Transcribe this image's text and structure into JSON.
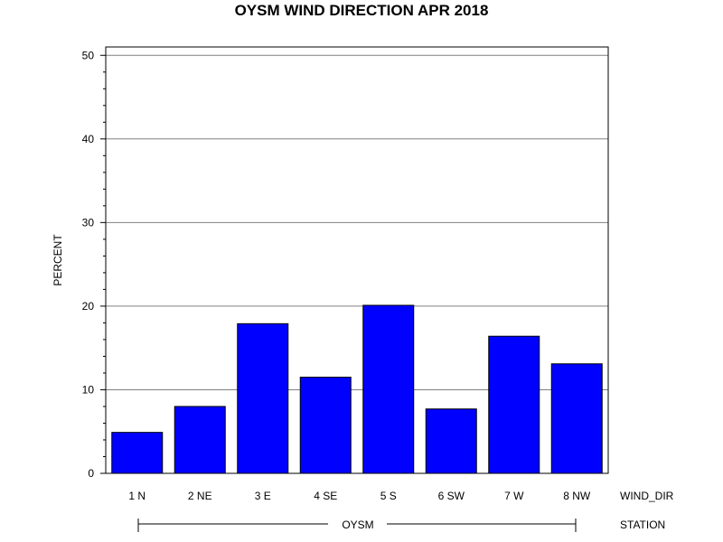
{
  "chart_data": {
    "type": "bar",
    "title": "OYSM WIND DIRECTION APR 2018",
    "ylabel": "PERCENT",
    "xlabel": "WIND_DIR",
    "group_label": "STATION",
    "group_value": "OYSM",
    "categories": [
      "1 N",
      "2 NE",
      "3 E",
      "4 SE",
      "5 S",
      "6 SW",
      "7 W",
      "8 NW"
    ],
    "values": [
      4.9,
      8.0,
      17.9,
      11.5,
      20.1,
      7.7,
      16.4,
      13.1
    ],
    "ylim": [
      0,
      51
    ],
    "yticks": [
      "0",
      "10",
      "20",
      "30",
      "40",
      "50"
    ],
    "grid": true,
    "bar_color": "#0000ff",
    "legend": "none"
  }
}
